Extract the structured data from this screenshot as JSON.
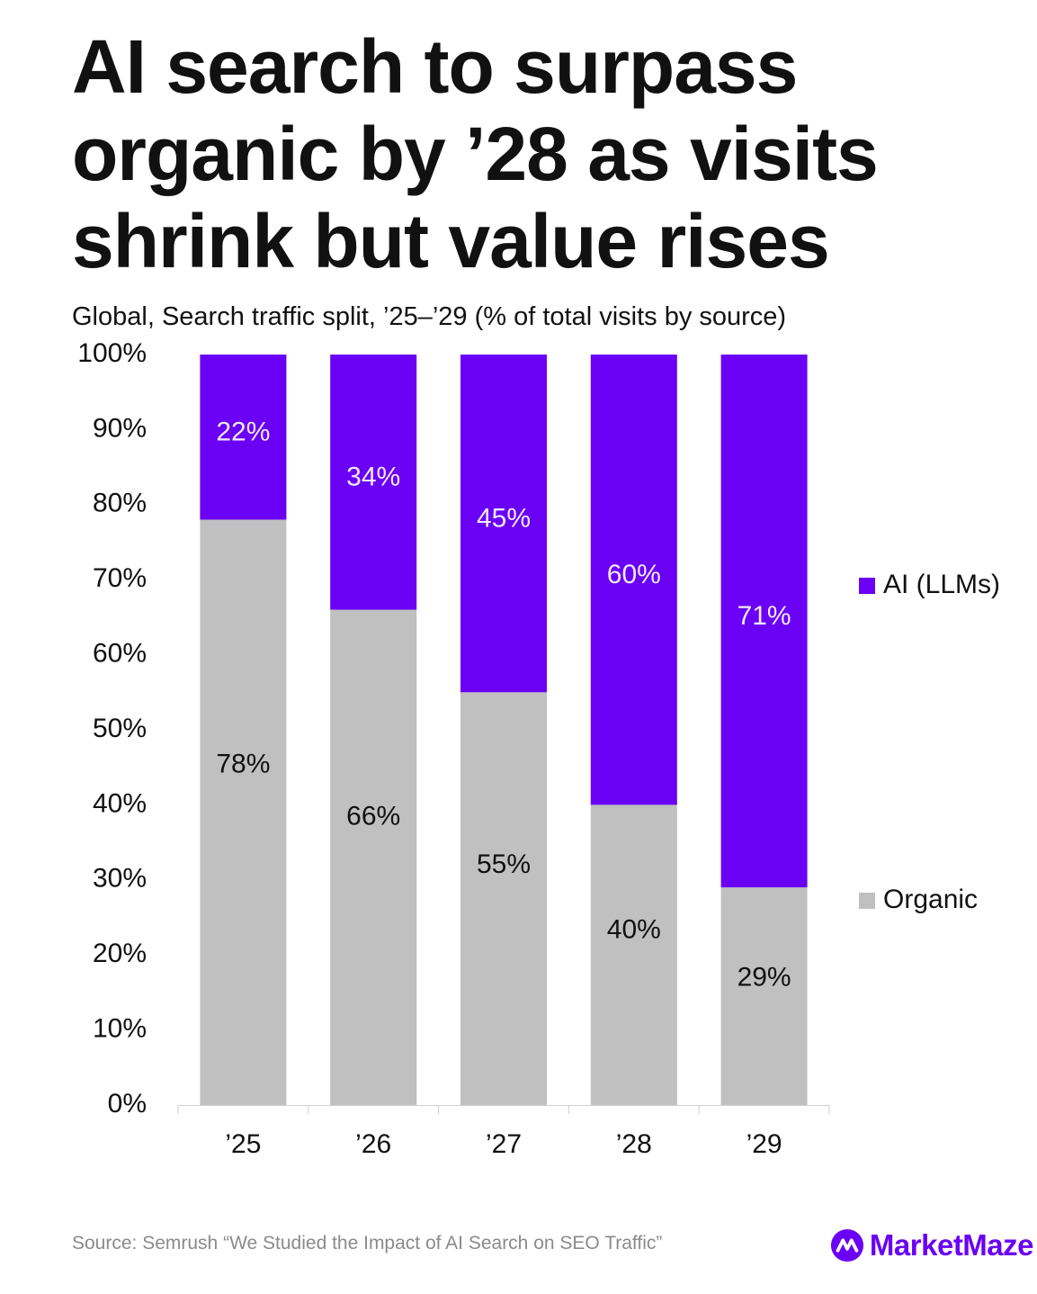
{
  "header": {
    "title_lines": [
      "AI search to surpass",
      "organic by ’28 as visits",
      "shrink but value rises"
    ],
    "subtitle": "Global, Search traffic split, ’25–’29 (% of total visits by source)"
  },
  "chart_data": {
    "type": "bar",
    "stacked": true,
    "title": "AI search to surpass organic by ’28 as visits shrink but value rises",
    "subtitle": "Global, Search traffic split, ’25–’29 (% of total visits by source)",
    "categories": [
      "’25",
      "’26",
      "’27",
      "’28",
      "’29"
    ],
    "series": [
      {
        "name": "Organic",
        "color": "#c0c0c0",
        "values": [
          78,
          66,
          55,
          40,
          29
        ],
        "labels": [
          "78%",
          "66%",
          "55%",
          "40%",
          "29%"
        ],
        "label_color": "#111111"
      },
      {
        "name": "AI (LLMs)",
        "color": "#6a00f4",
        "values": [
          22,
          34,
          45,
          60,
          71
        ],
        "labels": [
          "22%",
          "34%",
          "45%",
          "60%",
          "71%"
        ],
        "label_color": "#f2eaff"
      }
    ],
    "yticks": [
      0,
      10,
      20,
      30,
      40,
      50,
      60,
      70,
      80,
      90,
      100
    ],
    "ytick_labels": [
      "0%",
      "10%",
      "20%",
      "30%",
      "40%",
      "50%",
      "60%",
      "70%",
      "80%",
      "90%",
      "100%"
    ],
    "ylim": [
      0,
      100
    ],
    "xlabel": "",
    "ylabel": "",
    "grid": false,
    "legend": [
      {
        "name": "AI (LLMs)",
        "color": "#6a00f4"
      },
      {
        "name": "Organic",
        "color": "#c0c0c0"
      }
    ],
    "legend_position": "right"
  },
  "footer": {
    "source": "Source: Semrush “We Studied the Impact of AI Search on SEO Traffic”",
    "brand_name": "MarketMaze"
  },
  "colors": {
    "ai": "#6a00f4",
    "organic": "#c0c0c0",
    "brand": "#6a00f4",
    "text": "#111111",
    "source_text": "#8a8a8a"
  },
  "icons": {
    "brand_logo": "marketmaze-logo-icon"
  }
}
